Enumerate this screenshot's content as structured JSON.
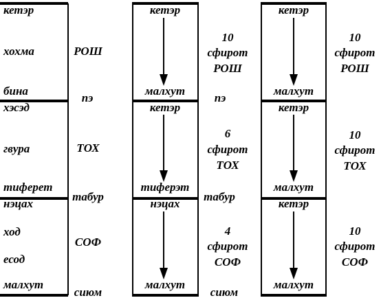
{
  "column1": {
    "labels": [
      "кетэр",
      "хохма",
      "бина",
      "хэсэд",
      "гвура",
      "тиферет",
      "нэцах",
      "ход",
      "есод",
      "малхут"
    ]
  },
  "middle_labels": [
    "РОШ",
    "пэ",
    "ТОХ",
    "табур",
    "СОФ",
    "сиюм"
  ],
  "column2": {
    "boxes": [
      {
        "top": "кетэр",
        "bottom": "малхут"
      },
      {
        "top": "кетэр",
        "bottom": "тиферэт"
      },
      {
        "top": "нэцах",
        "bottom": "малхут"
      }
    ],
    "notes": [
      [
        "10",
        "сфирот",
        "РОШ"
      ],
      [
        "6",
        "сфирот",
        "ТОХ"
      ],
      [
        "4",
        "сфирот",
        "СОФ"
      ]
    ],
    "boundaries": [
      "пэ",
      "табур",
      "сиюм"
    ]
  },
  "column3": {
    "boxes": [
      {
        "top": "кетэр",
        "bottom": "малхут"
      },
      {
        "top": "кетэр",
        "bottom": "малхут"
      },
      {
        "top": "кетэр",
        "bottom": "малхут"
      }
    ],
    "notes": [
      [
        "10",
        "сфирот",
        "РОШ"
      ],
      [
        "10",
        "сфирот",
        "ТОХ"
      ],
      [
        "10",
        "сфирот",
        "СОФ"
      ]
    ]
  }
}
